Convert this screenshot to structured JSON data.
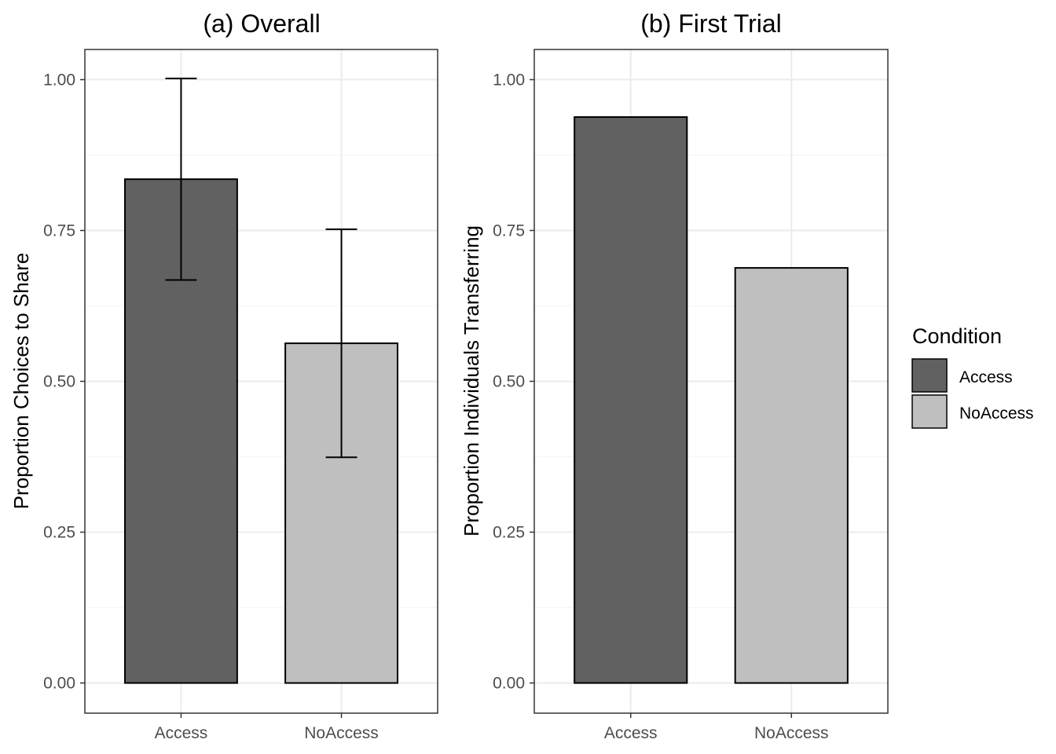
{
  "chart_data": [
    {
      "type": "bar",
      "title": "(a) Overall",
      "xlabel": "",
      "ylabel": "Proportion Choices to Share",
      "categories": [
        "Access",
        "NoAccess"
      ],
      "values": [
        0.835,
        0.563
      ],
      "error_bars": [
        {
          "category": "Access",
          "lower": 0.668,
          "upper": 1.002
        },
        {
          "category": "NoAccess",
          "lower": 0.374,
          "upper": 0.752
        }
      ],
      "ylim": [
        -0.05,
        1.05
      ],
      "yticks": [
        "0.00",
        "0.25",
        "0.50",
        "0.75",
        "1.00"
      ],
      "grid": true
    },
    {
      "type": "bar",
      "title": "(b) First Trial",
      "xlabel": "",
      "ylabel": "Proportion Individuals Transferring",
      "categories": [
        "Access",
        "NoAccess"
      ],
      "values": [
        0.938,
        0.688
      ],
      "ylim": [
        -0.05,
        1.05
      ],
      "yticks": [
        "0.00",
        "0.25",
        "0.50",
        "0.75",
        "1.00"
      ],
      "grid": true
    }
  ],
  "legend": {
    "title": "Condition",
    "placement": "right",
    "items": [
      {
        "label": "Access",
        "color": "#616161"
      },
      {
        "label": "NoAccess",
        "color": "#bfbfbf"
      }
    ]
  },
  "colors": {
    "Access": "#616161",
    "NoAccess": "#bfbfbf",
    "grid_major": "#ebebeb",
    "grid_minor": "#f5f5f5",
    "panel_border": "#333333",
    "tick_text": "#4d4d4d"
  }
}
